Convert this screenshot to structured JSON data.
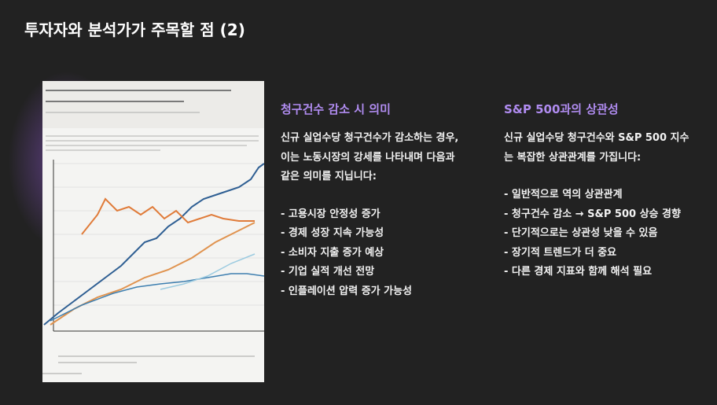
{
  "header": {
    "title": "투자자와 분석가가 주목할 점 (2)"
  },
  "columns": [
    {
      "heading": "청구건수 감소 시 의미",
      "paragraph": [
        "신규 실업수당 청구건수가 감소하는 경우,",
        "이는 노동시장의 강세를 나타내며 다음과",
        "같은 의미를 지닙니다:"
      ],
      "items": [
        "- 고용시장 안정성 증가",
        "- 경제 성장 지속 가능성",
        "- 소비자 지출 증가 예상",
        "- 기업 실적 개선 전망",
        "- 인플레이션 압력 증가 가능성"
      ]
    },
    {
      "heading": "S&P 500과의 상관성",
      "paragraph": [
        "신규 실업수당 청구건수와 S&P 500 지수",
        "는 복잡한 상관관계를 가집니다:"
      ],
      "items": [
        "- 일반적으로 역의 상관관계",
        "- 청구건수 감소 → S&P 500 상승 경향",
        "- 단기적으로는 상관성 낮을 수 있음",
        "- 장기적 트렌드가 더 중요",
        "- 다른 경제 지표와 함께 해석 필요"
      ]
    }
  ]
}
